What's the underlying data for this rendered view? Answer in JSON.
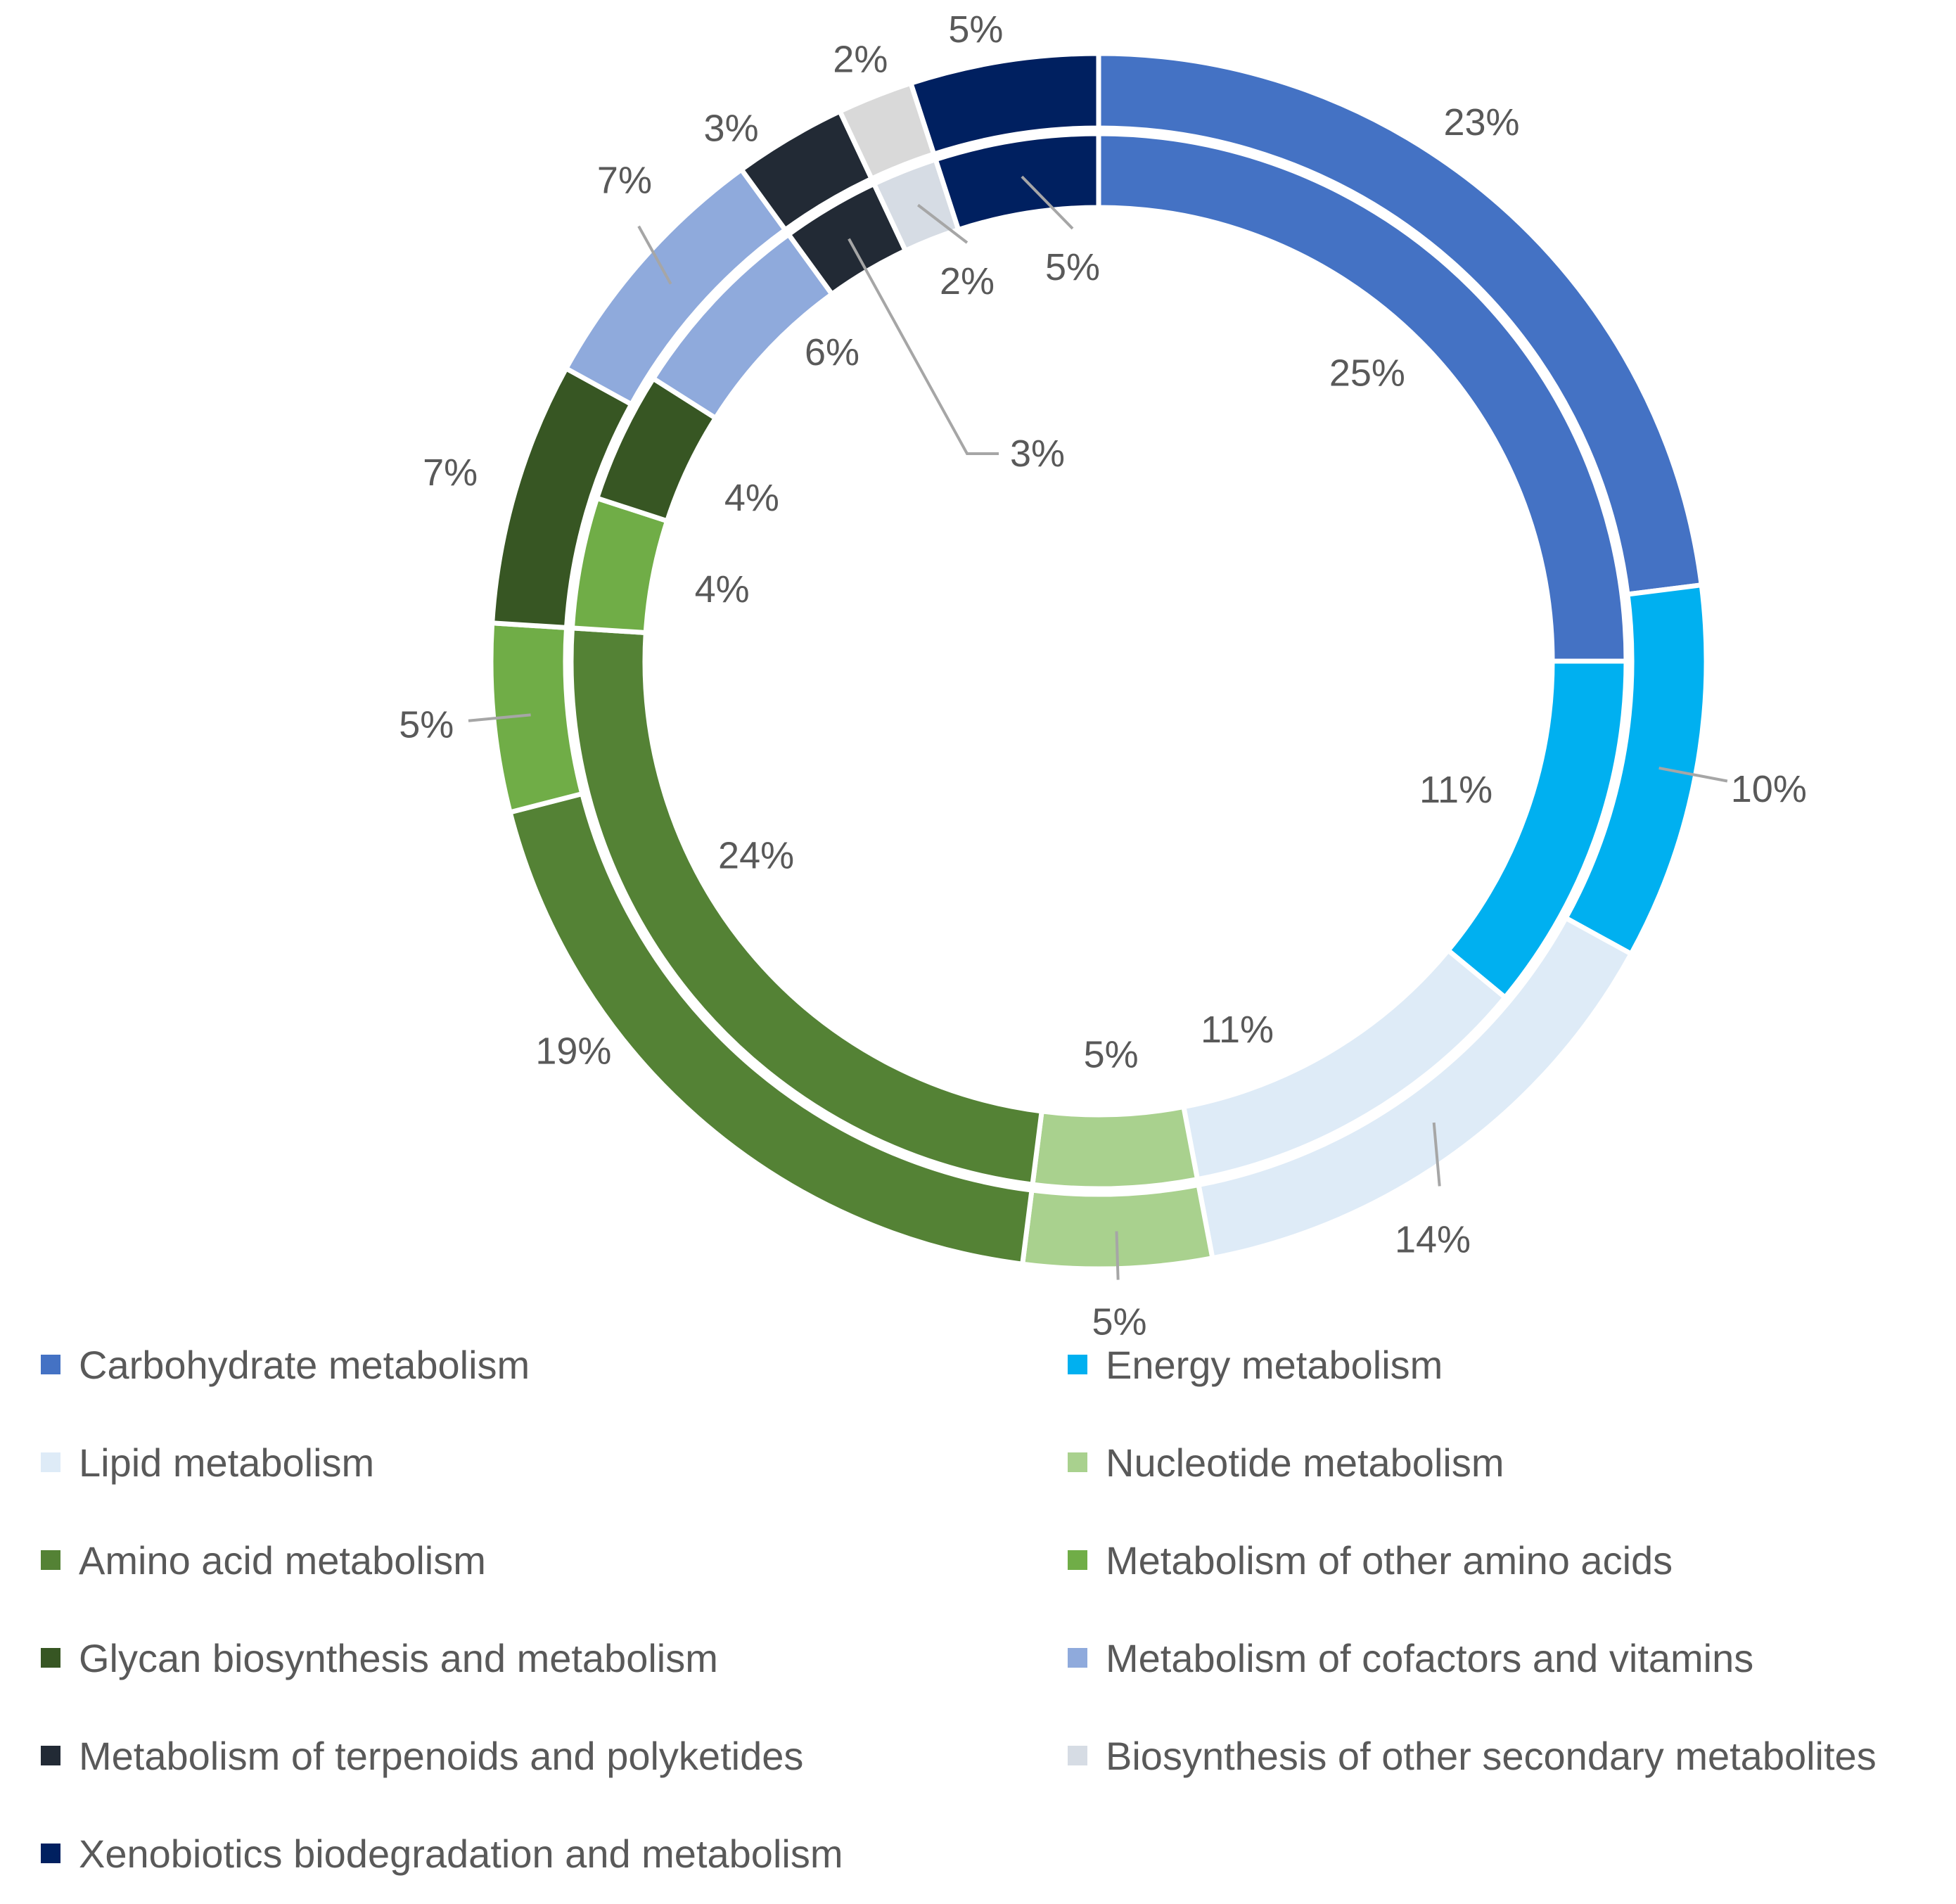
{
  "chart_data": {
    "type": "doughnut",
    "categories": [
      "Carbohydrate metabolism",
      "Energy metabolism",
      "Lipid metabolism",
      "Nucleotide metabolism",
      "Amino acid metabolism",
      "Metabolism of other amino acids",
      "Glycan biosynthesis and metabolism",
      "Metabolism of cofactors and vitamins",
      "Metabolism of terpenoids and polyketides",
      "Biosynthesis of other secondary metabolites",
      "Xenobiotics biodegradation and metabolism"
    ],
    "colors": [
      "#4472C4",
      "#00B0F0",
      "#DEEBF7",
      "#A9D18E",
      "#548235",
      "#70AD47",
      "#375623",
      "#8FAADC",
      "#222A35",
      "#D6DCE4",
      "#002060"
    ],
    "outer_ring_extra_colors": {
      "Biosynthesis of other secondary metabolites": "#D9D9D9"
    },
    "series": [
      {
        "name": "outer ring",
        "values": [
          23,
          10,
          14,
          5,
          19,
          5,
          7,
          7,
          3,
          2,
          5
        ],
        "labels": [
          "23%",
          "10%",
          "14%",
          "5%",
          "19%",
          "5%",
          "7%",
          "7%",
          "3%",
          "2%",
          "5%"
        ]
      },
      {
        "name": "inner ring",
        "values": [
          25,
          11,
          11,
          5,
          24,
          4,
          4,
          6,
          3,
          2,
          5
        ],
        "labels": [
          "25%",
          "11%",
          "11%",
          "5%",
          "24%",
          "4%",
          "4%",
          "6%",
          "3%",
          "2%",
          "5%"
        ]
      }
    ],
    "legend_position": "bottom",
    "title": ""
  }
}
